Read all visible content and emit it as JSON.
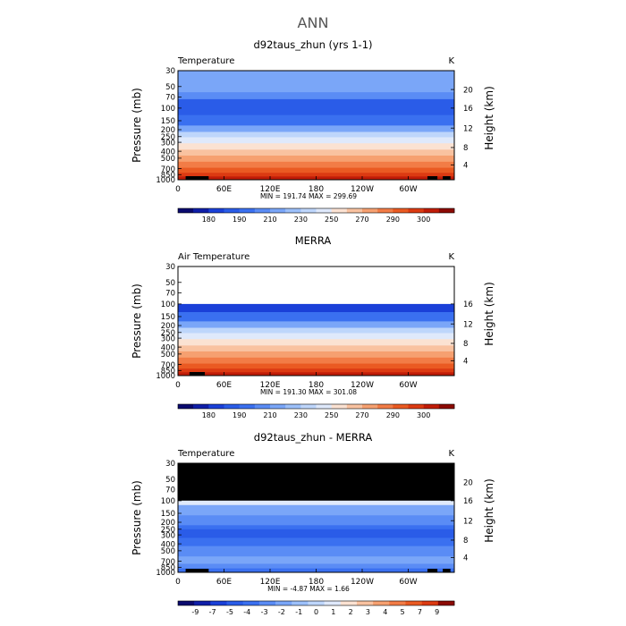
{
  "main_title": "ANN",
  "chart_data": [
    {
      "type": "contour-cross-section",
      "title": "d92taus_zhun (yrs 1-1)",
      "left_label": "Temperature",
      "units": "K",
      "ylabel": "Pressure (mb)",
      "ylabel_right": "Height (km)",
      "y_ticks": [
        "30",
        "50",
        "70",
        "100",
        "150",
        "200",
        "250",
        "300",
        "400",
        "500",
        "700",
        "850",
        "1000"
      ],
      "y_ticks_right": [
        "20",
        "16",
        "12",
        "8",
        "4"
      ],
      "x_ticks": [
        "0",
        "60E",
        "120E",
        "180",
        "120W",
        "60W"
      ],
      "stats": "MIN = 191.74   MAX = 299.69",
      "colorbar": {
        "labels": [
          "180",
          "190",
          "210",
          "230",
          "250",
          "270",
          "290",
          "300"
        ],
        "colors": [
          "#0a0a6e",
          "#0f1ea8",
          "#1a40d8",
          "#2a5ce8",
          "#3a70f0",
          "#5a8cf5",
          "#7aa6f8",
          "#9cc0fa",
          "#bed6fb",
          "#dfe9fb",
          "#fbe2d2",
          "#f9c2a0",
          "#f6a070",
          "#f27c46",
          "#ea5a22",
          "#dc3a12",
          "#c01c08",
          "#8c0a04"
        ]
      },
      "bands": [
        {
          "p_top": 30,
          "p_bot": 60,
          "level": 6
        },
        {
          "p_top": 60,
          "p_bot": 75,
          "level": 5
        },
        {
          "p_top": 75,
          "p_bot": 125,
          "level": 3
        },
        {
          "p_top": 125,
          "p_bot": 175,
          "level": 4
        },
        {
          "p_top": 175,
          "p_bot": 215,
          "level": 6
        },
        {
          "p_top": 215,
          "p_bot": 255,
          "level": 8
        },
        {
          "p_top": 255,
          "p_bot": 310,
          "level": 9
        },
        {
          "p_top": 310,
          "p_bot": 380,
          "level": 10
        },
        {
          "p_top": 380,
          "p_bot": 460,
          "level": 11
        },
        {
          "p_top": 460,
          "p_bot": 560,
          "level": 12
        },
        {
          "p_top": 560,
          "p_bot": 680,
          "level": 13
        },
        {
          "p_top": 680,
          "p_bot": 800,
          "level": 14
        },
        {
          "p_top": 800,
          "p_bot": 900,
          "level": 15
        },
        {
          "p_top": 900,
          "p_bot": 1000,
          "level": 16
        }
      ],
      "topography": [
        [
          10,
          30
        ],
        [
          22,
          40
        ],
        [
          325,
          338
        ],
        [
          345,
          355
        ]
      ]
    },
    {
      "type": "contour-cross-section",
      "title": "MERRA",
      "left_label": "Air Temperature",
      "units": "K",
      "ylabel": "Pressure (mb)",
      "ylabel_right": "Height (km)",
      "y_ticks": [
        "30",
        "50",
        "70",
        "100",
        "150",
        "200",
        "250",
        "300",
        "400",
        "500",
        "700",
        "850",
        "1000"
      ],
      "y_ticks_right": [
        "16",
        "12",
        "8",
        "4"
      ],
      "x_ticks": [
        "0",
        "60E",
        "120E",
        "180",
        "120W",
        "60W"
      ],
      "stats": "MIN = 191.30   MAX = 301.08",
      "colorbar": {
        "labels": [
          "180",
          "190",
          "210",
          "230",
          "250",
          "270",
          "290",
          "300"
        ],
        "colors": [
          "#0a0a6e",
          "#0f1ea8",
          "#1a40d8",
          "#2a5ce8",
          "#3a70f0",
          "#5a8cf5",
          "#7aa6f8",
          "#9cc0fa",
          "#bed6fb",
          "#dfe9fb",
          "#fbe2d2",
          "#f9c2a0",
          "#f6a070",
          "#f27c46",
          "#ea5a22",
          "#dc3a12",
          "#c01c08",
          "#8c0a04"
        ]
      },
      "bands": [
        {
          "p_top": 100,
          "p_bot": 130,
          "level": 2
        },
        {
          "p_top": 130,
          "p_bot": 175,
          "level": 4
        },
        {
          "p_top": 175,
          "p_bot": 215,
          "level": 6
        },
        {
          "p_top": 215,
          "p_bot": 255,
          "level": 8
        },
        {
          "p_top": 255,
          "p_bot": 310,
          "level": 9
        },
        {
          "p_top": 310,
          "p_bot": 380,
          "level": 10
        },
        {
          "p_top": 380,
          "p_bot": 460,
          "level": 11
        },
        {
          "p_top": 460,
          "p_bot": 560,
          "level": 12
        },
        {
          "p_top": 560,
          "p_bot": 680,
          "level": 13
        },
        {
          "p_top": 680,
          "p_bot": 800,
          "level": 14
        },
        {
          "p_top": 800,
          "p_bot": 900,
          "level": 15
        },
        {
          "p_top": 900,
          "p_bot": 1000,
          "level": 16
        }
      ],
      "topography": [
        [
          15,
          35
        ]
      ]
    },
    {
      "type": "contour-cross-section",
      "title": "d92taus_zhun - MERRA",
      "left_label": "Temperature",
      "units": "K",
      "ylabel": "Pressure (mb)",
      "ylabel_right": "Height (km)",
      "y_ticks": [
        "30",
        "50",
        "70",
        "100",
        "150",
        "200",
        "250",
        "300",
        "400",
        "500",
        "700",
        "850",
        "1000"
      ],
      "y_ticks_right": [
        "20",
        "16",
        "12",
        "8",
        "4"
      ],
      "x_ticks": [
        "0",
        "60E",
        "120E",
        "180",
        "120W",
        "60W"
      ],
      "stats": "MIN =   -4.87   MAX =    1.66",
      "colorbar": {
        "labels": [
          "-9",
          "-7",
          "-5",
          "-4",
          "-3",
          "-2",
          "-1",
          "0",
          "1",
          "2",
          "3",
          "4",
          "5",
          "7",
          "9"
        ],
        "colors": [
          "#0a0a6e",
          "#0f1ea8",
          "#1a40d8",
          "#2a5ce8",
          "#3a70f0",
          "#5a8cf5",
          "#7aa6f8",
          "#9cc0fa",
          "#bed6fb",
          "#dfe9fb",
          "#fbe2d2",
          "#f9c2a0",
          "#f6a070",
          "#f27c46",
          "#ea5a22",
          "#dc3a12",
          "#8c0a04"
        ]
      },
      "missing_above_p": 100,
      "bands": [
        {
          "p_top": 100,
          "p_bot": 115,
          "level": 9
        },
        {
          "p_top": 115,
          "p_bot": 160,
          "level": 6
        },
        {
          "p_top": 160,
          "p_bot": 220,
          "level": 5
        },
        {
          "p_top": 220,
          "p_bot": 250,
          "level": 4
        },
        {
          "p_top": 250,
          "p_bot": 330,
          "level": 3
        },
        {
          "p_top": 330,
          "p_bot": 430,
          "level": 4
        },
        {
          "p_top": 430,
          "p_bot": 600,
          "level": 5
        },
        {
          "p_top": 600,
          "p_bot": 760,
          "level": 6
        },
        {
          "p_top": 760,
          "p_bot": 880,
          "level": 5
        },
        {
          "p_top": 880,
          "p_bot": 1000,
          "level": 4
        }
      ],
      "topography": [
        [
          10,
          30
        ],
        [
          22,
          40
        ],
        [
          325,
          338
        ],
        [
          345,
          355
        ]
      ]
    }
  ]
}
